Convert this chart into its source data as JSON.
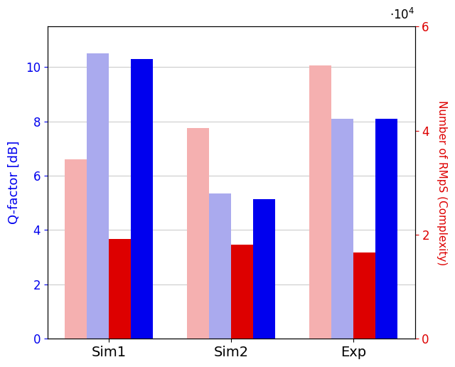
{
  "groups": [
    "Sim1",
    "Sim2",
    "Exp"
  ],
  "q_factor_light": [
    10.5,
    5.35,
    8.1
  ],
  "q_factor_dark": [
    10.3,
    5.15,
    8.1
  ],
  "complexity_light": [
    34500,
    40500,
    52500
  ],
  "complexity_dark": [
    19200,
    18000,
    16500
  ],
  "left_ylabel": "Q-factor [dB]",
  "right_ylabel": "Number of RMpS (Complexity)",
  "left_color": "#0000ee",
  "right_color": "#dd0000",
  "bar_width": 0.18,
  "left_ylim": [
    0,
    11.5
  ],
  "right_ylim": [
    0,
    60000
  ],
  "right_yticks": [
    0,
    20000,
    40000,
    60000
  ],
  "right_yticklabels": [
    "0",
    "2",
    "4",
    "6"
  ],
  "left_yticks": [
    0,
    2,
    4,
    6,
    8,
    10
  ],
  "color_light_pink": "#f5b0b0",
  "color_dark_red": "#dd0000",
  "color_light_blue": "#aaaaee",
  "color_dark_blue": "#0000ee",
  "background_color": "#ffffff",
  "grid_color": "#cccccc"
}
